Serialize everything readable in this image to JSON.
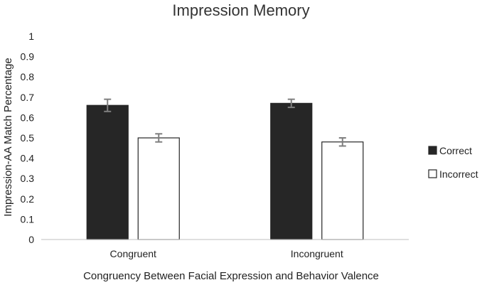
{
  "chart_data": {
    "type": "bar",
    "title": "Impression Memory",
    "xlabel": "Congruency Between Facial Expression and Behavior Valence",
    "ylabel": "Impression-AA Match Percentage",
    "categories": [
      "Congruent",
      "Incongruent"
    ],
    "series": [
      {
        "name": "Correct",
        "values": [
          0.66,
          0.67
        ],
        "errors": [
          0.03,
          0.02
        ],
        "color": "#262626"
      },
      {
        "name": "Incorrect",
        "values": [
          0.5,
          0.48
        ],
        "errors": [
          0.02,
          0.02
        ],
        "color": "#ffffff"
      }
    ],
    "ylim": [
      0,
      1
    ],
    "yticks": [
      "0",
      "0.1",
      "0.2",
      "0.3",
      "0.4",
      "0.5",
      "0.6",
      "0.7",
      "0.8",
      "0.9",
      "1"
    ],
    "grid": false,
    "legend_position": "right"
  }
}
